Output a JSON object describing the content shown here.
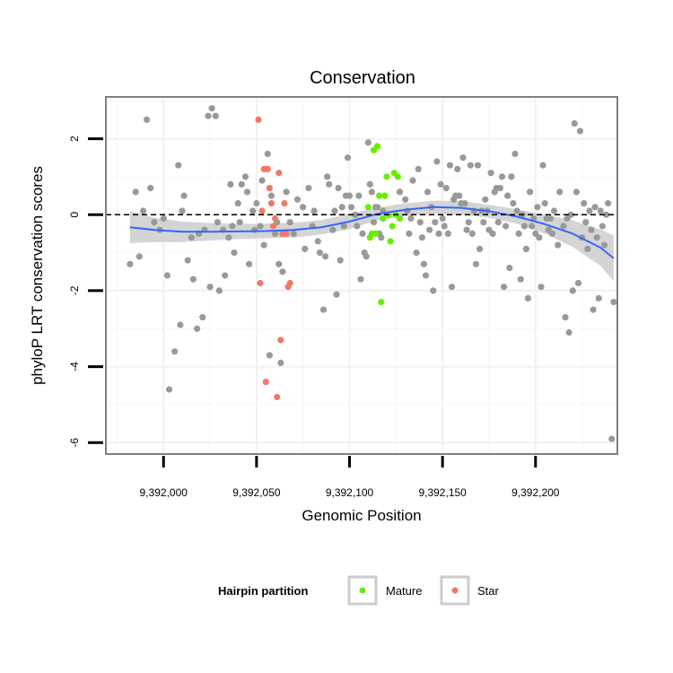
{
  "chart_data": {
    "type": "scatter",
    "title": "Conservation",
    "xlabel": "Genomic Position",
    "ylabel": "phyloP LRT conservation scores",
    "xlim": [
      9391969,
      9392244
    ],
    "ylim": [
      -6.3,
      3.1
    ],
    "x_ticks": [
      {
        "value": 9392000,
        "label": "9,392,000"
      },
      {
        "value": 9392050,
        "label": "9,392,050"
      },
      {
        "value": 9392100,
        "label": "9,392,100"
      },
      {
        "value": 9392150,
        "label": "9,392,150"
      },
      {
        "value": 9392200,
        "label": "9,392,200"
      }
    ],
    "y_ticks": [
      {
        "value": 2,
        "label": "2"
      },
      {
        "value": 0,
        "label": "0"
      },
      {
        "value": -2,
        "label": "-2"
      },
      {
        "value": -4,
        "label": "-4"
      },
      {
        "value": -6,
        "label": "-6"
      }
    ],
    "reference_line": {
      "y": 0,
      "style": "dashed",
      "color": "#000000"
    },
    "grid": true,
    "legend": {
      "title": "Hairpin partition",
      "position": "bottom",
      "items": [
        {
          "name": "Mature",
          "color": "#66ee00"
        },
        {
          "name": "Star",
          "color": "#f07868"
        }
      ]
    },
    "colors": {
      "other": "#999999",
      "smooth_line": "#3366ff",
      "smooth_band": "#cccccc",
      "panel_border": "#7f7f7f"
    },
    "series": [
      {
        "group": "other",
        "points": [
          [
            9391982,
            -1.3
          ],
          [
            9391985,
            0.6
          ],
          [
            9391987,
            -1.1
          ],
          [
            9391989,
            0.1
          ],
          [
            9391991,
            2.5
          ],
          [
            9391993,
            0.7
          ],
          [
            9391995,
            -0.2
          ],
          [
            9391998,
            -0.4
          ],
          [
            9392000,
            -0.1
          ],
          [
            9392002,
            -1.6
          ],
          [
            9392003,
            -4.6
          ],
          [
            9392006,
            -3.6
          ],
          [
            9392008,
            1.3
          ],
          [
            9392009,
            -2.9
          ],
          [
            9392010,
            0.1
          ],
          [
            9392011,
            0.5
          ],
          [
            9392013,
            -1.2
          ],
          [
            9392015,
            -0.6
          ],
          [
            9392016,
            -1.7
          ],
          [
            9392018,
            -3.0
          ],
          [
            9392019,
            -0.5
          ],
          [
            9392021,
            -2.7
          ],
          [
            9392022,
            -0.4
          ],
          [
            9392024,
            2.6
          ],
          [
            9392025,
            -1.9
          ],
          [
            9392026,
            2.8
          ],
          [
            9392028,
            2.6
          ],
          [
            9392029,
            -0.2
          ],
          [
            9392030,
            -2.0
          ],
          [
            9392032,
            -0.4
          ],
          [
            9392033,
            -1.6
          ],
          [
            9392035,
            -0.6
          ],
          [
            9392036,
            0.8
          ],
          [
            9392037,
            -0.3
          ],
          [
            9392038,
            -1.0
          ],
          [
            9392040,
            0.3
          ],
          [
            9392041,
            -0.2
          ],
          [
            9392042,
            0.8
          ],
          [
            9392044,
            1.0
          ],
          [
            9392045,
            0.6
          ],
          [
            9392046,
            -1.3
          ],
          [
            9392048,
            0.1
          ],
          [
            9392049,
            -0.4
          ],
          [
            9392050,
            0.3
          ],
          [
            9392052,
            -0.3
          ],
          [
            9392053,
            0.9
          ],
          [
            9392054,
            -0.8
          ],
          [
            9392056,
            1.6
          ],
          [
            9392057,
            -3.7
          ],
          [
            9392058,
            0.5
          ],
          [
            9392060,
            -0.5
          ],
          [
            9392061,
            -0.2
          ],
          [
            9392062,
            -1.3
          ],
          [
            9392063,
            -3.9
          ],
          [
            9392064,
            -1.5
          ],
          [
            9392066,
            0.6
          ],
          [
            9392068,
            -0.2
          ],
          [
            9392070,
            -0.5
          ],
          [
            9392072,
            0.4
          ],
          [
            9392075,
            0.2
          ],
          [
            9392076,
            -0.9
          ],
          [
            9392078,
            0.7
          ],
          [
            9392080,
            -0.3
          ],
          [
            9392081,
            0.1
          ],
          [
            9392083,
            -0.7
          ],
          [
            9392084,
            -1.0
          ],
          [
            9392086,
            -2.5
          ],
          [
            9392087,
            -1.1
          ],
          [
            9392088,
            1.0
          ],
          [
            9392089,
            0.8
          ],
          [
            9392091,
            -0.4
          ],
          [
            9392092,
            0.1
          ],
          [
            9392093,
            -2.1
          ],
          [
            9392094,
            0.7
          ],
          [
            9392095,
            -1.2
          ],
          [
            9392096,
            0.2
          ],
          [
            9392097,
            -0.3
          ],
          [
            9392098,
            0.5
          ],
          [
            9392099,
            1.5
          ],
          [
            9392100,
            0.5
          ],
          [
            9392101,
            0.2
          ],
          [
            9392103,
            0.0
          ],
          [
            9392104,
            -0.3
          ],
          [
            9392105,
            0.5
          ],
          [
            9392106,
            -1.7
          ],
          [
            9392107,
            -0.5
          ],
          [
            9392108,
            -1.0
          ],
          [
            9392109,
            -1.1
          ],
          [
            9392110,
            1.9
          ],
          [
            9392111,
            0.8
          ],
          [
            9392112,
            0.6
          ],
          [
            9392113,
            -0.2
          ],
          [
            9392114,
            0.2
          ],
          [
            9392115,
            0.2
          ],
          [
            9392116,
            -0.5
          ],
          [
            9392117,
            -0.6
          ],
          [
            9392118,
            0.1
          ],
          [
            9392127,
            0.6
          ],
          [
            9392130,
            0.4
          ],
          [
            9392131,
            0.1
          ],
          [
            9392132,
            -0.5
          ],
          [
            9392133,
            -0.1
          ],
          [
            9392134,
            0.9
          ],
          [
            9392136,
            -1.0
          ],
          [
            9392137,
            1.2
          ],
          [
            9392138,
            -0.2
          ],
          [
            9392139,
            -0.6
          ],
          [
            9392140,
            -1.3
          ],
          [
            9392141,
            -1.6
          ],
          [
            9392142,
            0.6
          ],
          [
            9392143,
            -0.4
          ],
          [
            9392144,
            0.2
          ],
          [
            9392145,
            -2.0
          ],
          [
            9392146,
            -0.2
          ],
          [
            9392147,
            1.4
          ],
          [
            9392148,
            -0.5
          ],
          [
            9392149,
            0.8
          ],
          [
            9392150,
            -0.1
          ],
          [
            9392151,
            -0.3
          ],
          [
            9392152,
            0.7
          ],
          [
            9392153,
            -0.5
          ],
          [
            9392154,
            1.3
          ],
          [
            9392155,
            -1.9
          ],
          [
            9392156,
            0.4
          ],
          [
            9392157,
            0.5
          ],
          [
            9392158,
            1.2
          ],
          [
            9392159,
            0.5
          ],
          [
            9392160,
            0.3
          ],
          [
            9392161,
            1.5
          ],
          [
            9392162,
            0.3
          ],
          [
            9392163,
            -0.4
          ],
          [
            9392164,
            -0.2
          ],
          [
            9392165,
            1.3
          ],
          [
            9392166,
            -0.5
          ],
          [
            9392167,
            0.1
          ],
          [
            9392168,
            -1.3
          ],
          [
            9392169,
            1.3
          ],
          [
            9392170,
            -0.9
          ],
          [
            9392171,
            0.1
          ],
          [
            9392172,
            -0.2
          ],
          [
            9392173,
            0.4
          ],
          [
            9392174,
            0.1
          ],
          [
            9392175,
            -0.4
          ],
          [
            9392176,
            1.1
          ],
          [
            9392177,
            -0.5
          ],
          [
            9392178,
            0.6
          ],
          [
            9392179,
            0.7
          ],
          [
            9392180,
            -0.2
          ],
          [
            9392181,
            0.7
          ],
          [
            9392182,
            1.0
          ],
          [
            9392183,
            -1.9
          ],
          [
            9392184,
            -0.3
          ],
          [
            9392185,
            0.5
          ],
          [
            9392186,
            -1.4
          ],
          [
            9392187,
            1.0
          ],
          [
            9392188,
            0.3
          ],
          [
            9392189,
            1.6
          ],
          [
            9392190,
            0.1
          ],
          [
            9392191,
            -0.5
          ],
          [
            9392192,
            -1.7
          ],
          [
            9392193,
            0.0
          ],
          [
            9392194,
            -0.3
          ],
          [
            9392195,
            -0.9
          ],
          [
            9392196,
            -2.2
          ],
          [
            9392197,
            0.6
          ],
          [
            9392198,
            -0.3
          ],
          [
            9392199,
            -0.1
          ],
          [
            9392200,
            -0.5
          ],
          [
            9392201,
            0.2
          ],
          [
            9392202,
            -0.6
          ],
          [
            9392203,
            -1.9
          ],
          [
            9392204,
            1.3
          ],
          [
            9392205,
            0.3
          ],
          [
            9392206,
            -0.1
          ],
          [
            9392207,
            -0.4
          ],
          [
            9392208,
            -0.1
          ],
          [
            9392209,
            -0.5
          ],
          [
            9392210,
            0.1
          ],
          [
            9392212,
            -0.8
          ],
          [
            9392213,
            0.6
          ],
          [
            9392215,
            -0.3
          ],
          [
            9392216,
            -2.7
          ],
          [
            9392217,
            -0.1
          ],
          [
            9392218,
            -3.1
          ],
          [
            9392219,
            0.0
          ],
          [
            9392220,
            -2.0
          ],
          [
            9392221,
            2.4
          ],
          [
            9392222,
            0.6
          ],
          [
            9392223,
            -1.8
          ],
          [
            9392224,
            2.2
          ],
          [
            9392225,
            -0.6
          ],
          [
            9392226,
            0.3
          ],
          [
            9392227,
            -0.2
          ],
          [
            9392228,
            -0.9
          ],
          [
            9392229,
            0.1
          ],
          [
            9392230,
            -0.4
          ],
          [
            9392231,
            -2.5
          ],
          [
            9392232,
            0.2
          ],
          [
            9392233,
            -0.6
          ],
          [
            9392234,
            -2.2
          ],
          [
            9392235,
            0.1
          ],
          [
            9392236,
            -0.3
          ],
          [
            9392237,
            -0.8
          ],
          [
            9392238,
            0.0
          ],
          [
            9392239,
            0.3
          ],
          [
            9392241,
            -5.9
          ],
          [
            9392242,
            -2.3
          ]
        ]
      },
      {
        "group": "Mature",
        "points": [
          [
            9392110,
            0.2
          ],
          [
            9392111,
            -0.6
          ],
          [
            9392112,
            -0.5
          ],
          [
            9392113,
            1.7
          ],
          [
            9392114,
            -0.5
          ],
          [
            9392115,
            1.8
          ],
          [
            9392116,
            0.5
          ],
          [
            9392117,
            -2.3
          ],
          [
            9392118,
            -0.1
          ],
          [
            9392119,
            0.5
          ],
          [
            9392120,
            1.0
          ],
          [
            9392121,
            0.0
          ],
          [
            9392122,
            -0.7
          ],
          [
            9392123,
            -0.3
          ],
          [
            9392124,
            1.1
          ],
          [
            9392125,
            0.0
          ],
          [
            9392126,
            1.0
          ],
          [
            9392127,
            -0.1
          ]
        ]
      },
      {
        "group": "Star",
        "points": [
          [
            9392051,
            2.5
          ],
          [
            9392052,
            -1.8
          ],
          [
            9392053,
            0.1
          ],
          [
            9392054,
            1.2
          ],
          [
            9392055,
            -4.4
          ],
          [
            9392056,
            1.2
          ],
          [
            9392057,
            0.7
          ],
          [
            9392058,
            0.3
          ],
          [
            9392059,
            -0.3
          ],
          [
            9392060,
            -0.1
          ],
          [
            9392061,
            -4.8
          ],
          [
            9392062,
            1.1
          ],
          [
            9392063,
            -3.3
          ],
          [
            9392064,
            -0.5
          ],
          [
            9392065,
            0.3
          ],
          [
            9392066,
            -0.5
          ],
          [
            9392067,
            -1.9
          ],
          [
            9392068,
            -1.8
          ]
        ]
      }
    ],
    "smooth": {
      "x": [
        9391982,
        9391995,
        9392010,
        9392025,
        9392040,
        9392055,
        9392070,
        9392085,
        9392100,
        9392115,
        9392130,
        9392145,
        9392160,
        9392175,
        9392190,
        9392205,
        9392220,
        9392235,
        9392242
      ],
      "y": [
        -0.33,
        -0.4,
        -0.45,
        -0.45,
        -0.44,
        -0.43,
        -0.4,
        -0.33,
        -0.18,
        0.02,
        0.13,
        0.2,
        0.18,
        0.09,
        -0.05,
        -0.25,
        -0.5,
        -0.87,
        -1.15
      ],
      "lower": [
        -0.75,
        -0.72,
        -0.72,
        -0.68,
        -0.64,
        -0.62,
        -0.6,
        -0.52,
        -0.38,
        -0.15,
        -0.04,
        0.03,
        0.0,
        -0.08,
        -0.24,
        -0.5,
        -0.85,
        -1.35,
        -1.75
      ],
      "upper": [
        0.1,
        -0.08,
        -0.18,
        -0.22,
        -0.24,
        -0.24,
        -0.21,
        -0.14,
        0.02,
        0.19,
        0.3,
        0.37,
        0.36,
        0.26,
        0.14,
        0.0,
        -0.15,
        -0.39,
        -0.55
      ]
    }
  }
}
